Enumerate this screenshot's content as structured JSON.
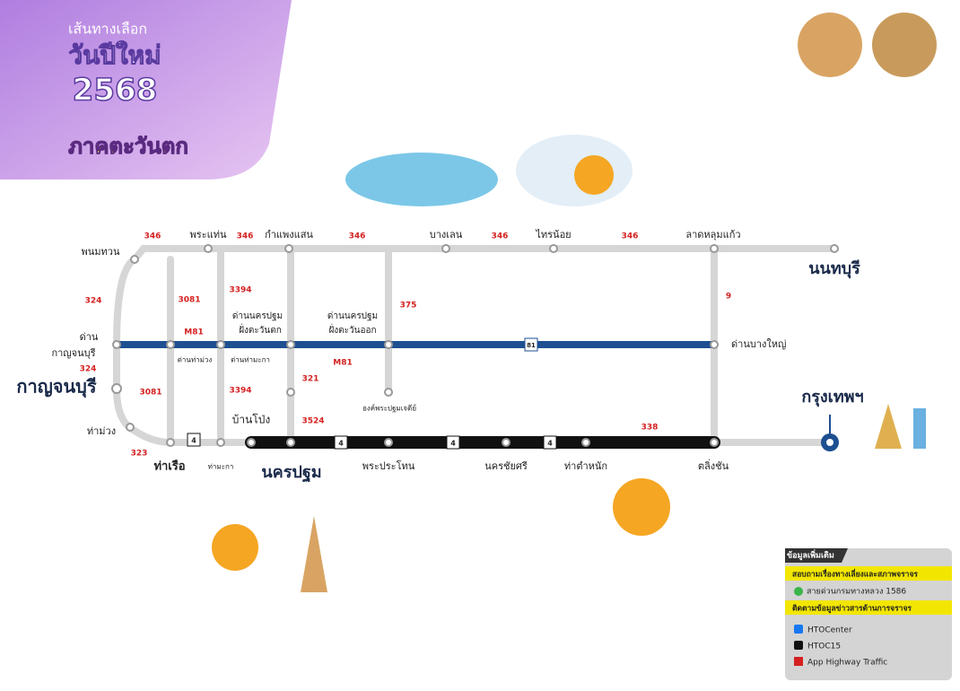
{
  "header": {
    "subtitle": "เส้นทางเลือก",
    "title": "วันปีใหม่",
    "year": "2568",
    "region": "ภาคตะวันตก"
  },
  "places": [
    "พนมทวน",
    "พระแท่น",
    "กำแพงแสน",
    "บางเลน",
    "ไทรน้อย",
    "ลาดหลุมแก้ว",
    "นนทบุรี",
    "ด่าน",
    "กาญจนบุรี",
    "กาญจนบุรี",
    "ท่าม่วง",
    "ท่าเรือ",
    "ท่ามะกา",
    "นครปฐม",
    "พระประโทน",
    "นครชัยศรี",
    "ท่าตำหนัก",
    "ตลิ่งชัน",
    "กรุงเทพฯ",
    "ด่านนครปฐม",
    "ฝั่งตะวันตก",
    "ด่านนครปฐม",
    "ฝั่งตะวันออก",
    "ด่านท่าม่วง",
    "ด่านท่ามะกา",
    "องค์พระปฐมเจดีย์",
    "บ้านโป่ง",
    "ด่านบางใหญ่"
  ],
  "routes": [
    "346",
    "346",
    "346",
    "346",
    "346",
    "324",
    "324",
    "3081",
    "3081",
    "3394",
    "3394",
    "M81",
    "M81",
    "375",
    "321",
    "3524",
    "338",
    "323",
    "9"
  ],
  "shields": [
    "4",
    "4",
    "4",
    "4",
    "81"
  ],
  "info": {
    "title": "ข้อมูลเพิ่มเติม",
    "ask": "สอบถามเรื่องทางเลี่ยงและสภาพจราจร",
    "hotline": "สายด่วนกรมทางหลวง 1586",
    "follow": "ติดตามข้อมูลข่าวสารด้านการจราจร",
    "facebook": "HTOCenter",
    "x": "HTOC15",
    "app": "App Highway Traffic"
  }
}
